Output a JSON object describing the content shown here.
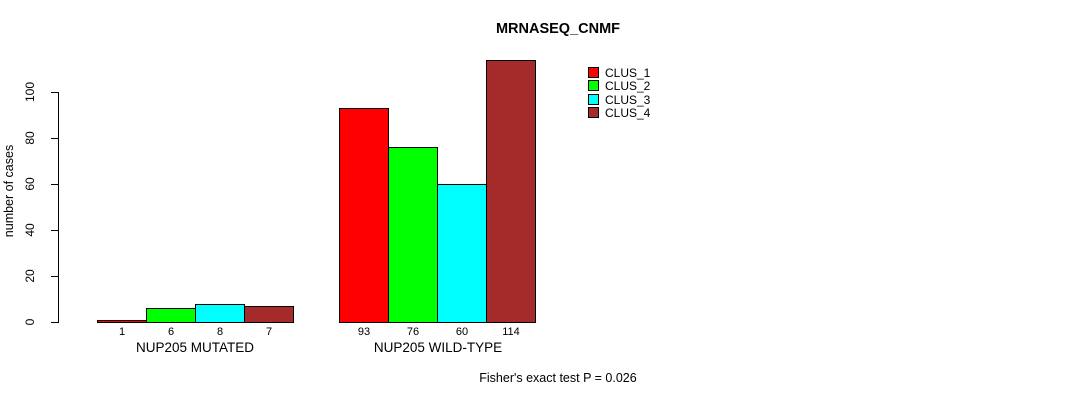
{
  "chart_data": {
    "type": "bar",
    "title": "MRNASEQ_CNMF",
    "ylabel": "number of cases",
    "xlabel": "",
    "ylim": [
      0,
      115
    ],
    "yticks": [
      0,
      20,
      40,
      60,
      80,
      100
    ],
    "categories": [
      "NUP205 MUTATED",
      "NUP205 WILD-TYPE"
    ],
    "series": [
      {
        "name": "CLUS_1",
        "color": "#FF0000",
        "values": [
          1,
          93
        ]
      },
      {
        "name": "CLUS_2",
        "color": "#00FF00",
        "values": [
          6,
          76
        ]
      },
      {
        "name": "CLUS_3",
        "color": "#00FFFF",
        "values": [
          8,
          60
        ]
      },
      {
        "name": "CLUS_4",
        "color": "#A52A2A",
        "values": [
          7,
          114
        ]
      }
    ],
    "value_labels_shown": true,
    "legend_position": "top-right",
    "grid": false
  },
  "footer": {
    "note": "Fisher's exact test P = 0.026"
  }
}
